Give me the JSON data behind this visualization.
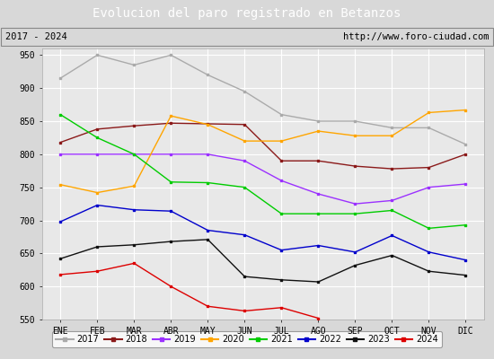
{
  "title": "Evolucion del paro registrado en Betanzos",
  "subtitle_left": "2017 - 2024",
  "subtitle_right": "http://www.foro-ciudad.com",
  "title_bg_color": "#4a7fc1",
  "title_text_color": "#ffffff",
  "months": [
    "ENE",
    "FEB",
    "MAR",
    "ABR",
    "MAY",
    "JUN",
    "JUL",
    "AGO",
    "SEP",
    "OCT",
    "NOV",
    "DIC"
  ],
  "ylim": [
    550,
    960
  ],
  "yticks": [
    550,
    600,
    650,
    700,
    750,
    800,
    850,
    900,
    950
  ],
  "series": {
    "2017": {
      "color": "#aaaaaa",
      "values": [
        915,
        950,
        935,
        950,
        920,
        895,
        860,
        850,
        850,
        840,
        840,
        815
      ]
    },
    "2018": {
      "color": "#8b1a1a",
      "values": [
        818,
        838,
        843,
        847,
        846,
        845,
        790,
        790,
        782,
        778,
        780,
        800
      ]
    },
    "2019": {
      "color": "#9b30ff",
      "values": [
        800,
        800,
        800,
        800,
        800,
        790,
        760,
        740,
        725,
        730,
        750,
        755
      ]
    },
    "2020": {
      "color": "#ffa500",
      "values": [
        754,
        742,
        752,
        858,
        845,
        820,
        820,
        835,
        828,
        828,
        863,
        867
      ]
    },
    "2021": {
      "color": "#00cc00",
      "values": [
        860,
        825,
        800,
        758,
        757,
        750,
        710,
        710,
        710,
        715,
        688,
        693
      ]
    },
    "2022": {
      "color": "#0000cc",
      "values": [
        698,
        723,
        716,
        714,
        685,
        678,
        655,
        662,
        652,
        677,
        652,
        640
      ]
    },
    "2023": {
      "color": "#111111",
      "values": [
        642,
        660,
        663,
        668,
        671,
        615,
        610,
        607,
        632,
        647,
        623,
        617
      ]
    },
    "2024": {
      "color": "#dd0000",
      "values": [
        618,
        623,
        635,
        600,
        570,
        563,
        568,
        552,
        null,
        null,
        null,
        null
      ]
    }
  },
  "bg_color": "#d8d8d8",
  "plot_bg_color": "#e8e8e8",
  "grid_color": "#ffffff",
  "legend_bg": "#ffffff",
  "subtitle_bg": "#e8e8e8"
}
